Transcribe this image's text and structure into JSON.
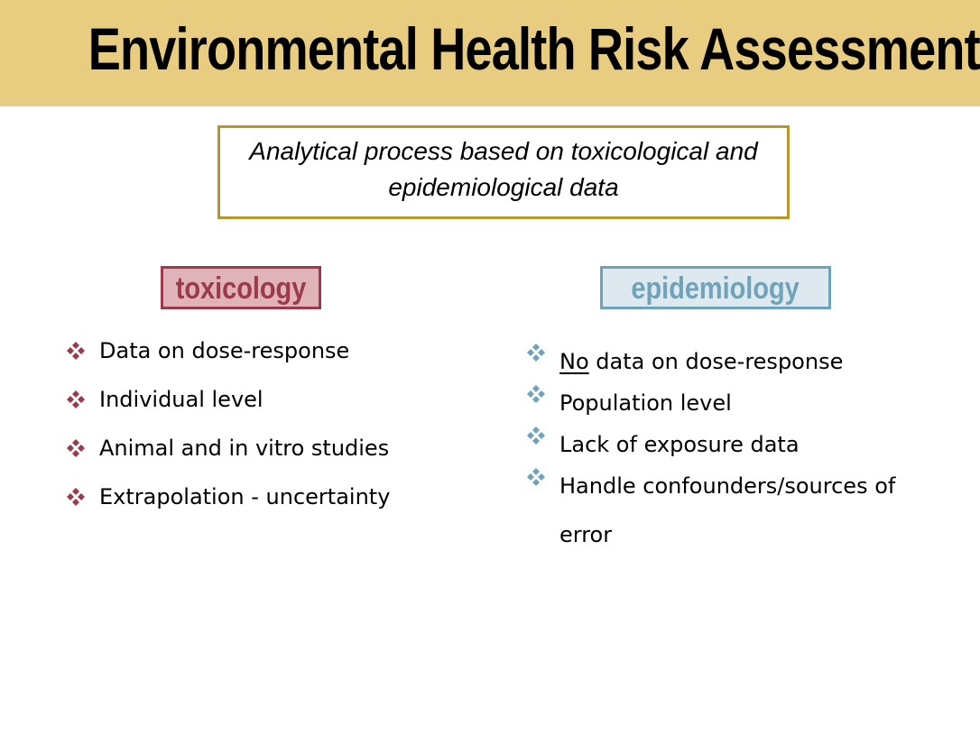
{
  "slide": {
    "title": "Environmental Health Risk Assessment",
    "subtitle_line1": "Analytical process based on toxicological and",
    "subtitle_line2": "epidemiological data"
  },
  "toxicology": {
    "label": "toxicology",
    "color": "#9b3a4a",
    "fill": "#e0b3b8",
    "items": [
      "Data on dose-response",
      "Individual level",
      "Animal and in vitro studies",
      "Extrapolation - uncertainty"
    ]
  },
  "epidemiology": {
    "label": "epidemiology",
    "color": "#6fa3b9",
    "fill": "#dde9ef",
    "items": [
      {
        "prefix": "No",
        "text": " data on dose-response"
      },
      {
        "prefix": "",
        "text": "Population level"
      },
      {
        "prefix": "",
        "text": "Lack of exposure data"
      },
      {
        "prefix": "",
        "text": "Handle confounders/sources of error"
      }
    ]
  },
  "colors": {
    "title_band": "#e8cc7f",
    "subtitle_border": "#b8962e"
  },
  "icons": {
    "bullet": "diamond-bullet-icon"
  }
}
